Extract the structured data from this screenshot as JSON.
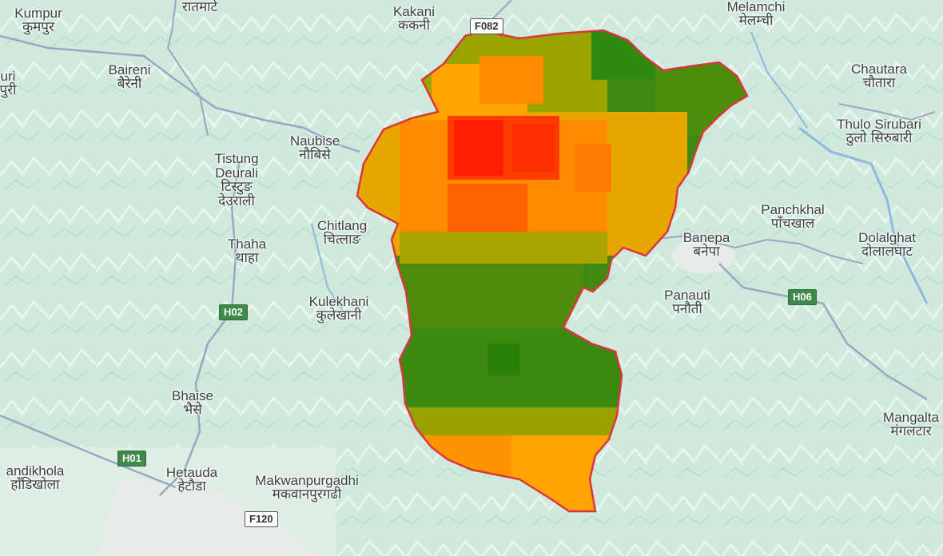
{
  "colors": {
    "land": "#cfeadc",
    "terrain_light": "#e3f3ea",
    "river": "#8fb8e0",
    "boundary": "#d9363e",
    "highway": "#f3f3f3",
    "urban": "#e6ece8",
    "heat_low": "#2f8a10",
    "heat_mid": "#b9a800",
    "heat_high": "#ff8a00",
    "heat_max": "#ff1e00"
  },
  "places": [
    {
      "id": "kumpur",
      "en": "Kumpur",
      "np": "कुमपुर"
    },
    {
      "id": "ratmate",
      "en": "",
      "np": "रातमाटे"
    },
    {
      "id": "kakani",
      "en": "Kakani",
      "np": "ककनी"
    },
    {
      "id": "melamchi",
      "en": "Melamchi",
      "np": "मेलम्ची"
    },
    {
      "id": "chautara",
      "en": "Chautara",
      "np": "चौतारा"
    },
    {
      "id": "thulo-sirubari",
      "en": "Thulo Sirubari",
      "np": "ठुलो सिरुबारी"
    },
    {
      "id": "baireni",
      "en": "Baireni",
      "np": "बैरेनी"
    },
    {
      "id": "naubise",
      "en": "Naubise",
      "np": "नौबिसे"
    },
    {
      "id": "tistung-deurali",
      "en": "Tistung\nDeurali",
      "np": "टिस्टुङ\nदेउराली"
    },
    {
      "id": "chitlang",
      "en": "Chitlang",
      "np": "चित्लाङ"
    },
    {
      "id": "thaha",
      "en": "Thaha",
      "np": "थाहा"
    },
    {
      "id": "panchkhal",
      "en": "Panchkhal",
      "np": "पाँचखाल"
    },
    {
      "id": "banepa",
      "en": "Banepa",
      "np": "बनेपा"
    },
    {
      "id": "dolalghat",
      "en": "Dolalghat",
      "np": "दोलालघाट"
    },
    {
      "id": "panauti",
      "en": "Panauti",
      "np": "पनौती"
    },
    {
      "id": "kulekhani",
      "en": "Kulekhani",
      "np": "कुलेखानी"
    },
    {
      "id": "bhaise",
      "en": "Bhaise",
      "np": "भैसे"
    },
    {
      "id": "mangaltar",
      "en": "Mangalta",
      "np": "मंगलटार"
    },
    {
      "id": "bhandikhola",
      "en": "andikhola",
      "np": "हाँडिखोला"
    },
    {
      "id": "hetauda",
      "en": "Hetauda",
      "np": "हेटौडा"
    },
    {
      "id": "makwanpurgadhi",
      "en": "Makwanpurgadhi",
      "np": "मकवानपुरगढी"
    },
    {
      "id": "left-edge",
      "en": "uri",
      "np": "पुरी"
    }
  ],
  "shields": [
    {
      "id": "f082",
      "label": "F082",
      "kind": "feeder"
    },
    {
      "id": "h02",
      "label": "H02",
      "kind": "highway"
    },
    {
      "id": "h06",
      "label": "H06",
      "kind": "highway"
    },
    {
      "id": "h01",
      "label": "H01",
      "kind": "highway"
    },
    {
      "id": "f120",
      "label": "F120",
      "kind": "feeder"
    }
  ],
  "overlay": {
    "name": "intensity-overlay",
    "levels": [
      "low",
      "mid",
      "high",
      "max"
    ]
  }
}
